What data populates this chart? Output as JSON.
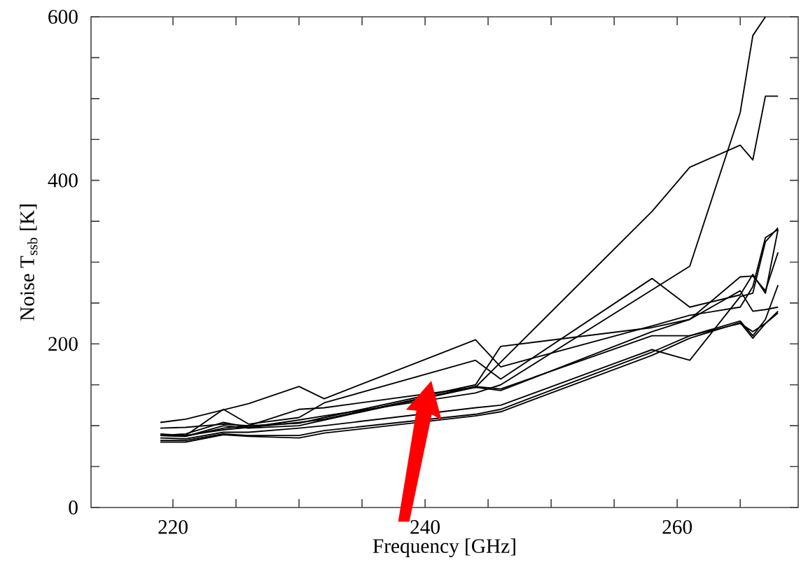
{
  "chart_data": {
    "type": "line",
    "xlabel": "Frequency [GHz]",
    "ylabel": "Noise T$_{ssb}$ [K]",
    "xlim": [
      213.5,
      269.6
    ],
    "ylim": [
      0,
      600
    ],
    "xticks": [
      220,
      {
        "value": 225,
        "label": null
      },
      {
        "value": 230,
        "label": null
      },
      {
        "value": 235,
        "label": null
      },
      240,
      {
        "value": 245,
        "label": null
      },
      {
        "value": 250,
        "label": null
      },
      {
        "value": 255,
        "label": null
      },
      260,
      {
        "value": 265,
        "label": null
      }
    ],
    "yticks": [
      0,
      {
        "value": 50,
        "label": null
      },
      {
        "value": 100,
        "label": null
      },
      {
        "value": 150,
        "label": null
      },
      200,
      {
        "value": 250,
        "label": null
      },
      {
        "value": 300,
        "label": null
      },
      {
        "value": 350,
        "label": null
      },
      400,
      {
        "value": 450,
        "label": null
      },
      {
        "value": 500,
        "label": null
      },
      {
        "value": 550,
        "label": null
      },
      600
    ],
    "x": [
      219,
      221,
      224,
      226,
      230,
      232,
      244,
      246,
      258,
      261,
      265,
      266,
      267,
      268
    ],
    "series": [
      {
        "color": "#000000",
        "x": [
          219,
          221,
          226,
          230,
          232,
          244,
          246,
          258,
          261,
          265,
          266,
          267,
          268
        ],
        "values": [
          104,
          108,
          127,
          148,
          133,
          205,
          172,
          222,
          235,
          245,
          270,
          330,
          340
        ]
      },
      {
        "color": "#000000",
        "x": [
          219,
          221,
          224,
          226,
          230,
          232,
          244,
          258,
          261,
          265,
          266,
          267,
          268
        ],
        "values": [
          97,
          98,
          102,
          100,
          120,
          122,
          147,
          362,
          416,
          443,
          425,
          503,
          503
        ]
      },
      {
        "color": "#000000",
        "x": [
          219,
          221,
          224,
          226,
          230,
          232,
          244,
          246,
          261,
          265,
          266,
          267
        ],
        "values": [
          88,
          90,
          104,
          98,
          107,
          112,
          140,
          150,
          295,
          483,
          577,
          600
        ]
      },
      {
        "color": "#000000",
        "values": [
          90,
          88,
          120,
          102,
          110,
          128,
          180,
          157,
          280,
          245,
          260,
          285,
          262,
          340
        ]
      },
      {
        "color": "#000000",
        "values": [
          88,
          87,
          97,
          100,
          103,
          110,
          150,
          197,
          220,
          230,
          265,
          240,
          242,
          245
        ]
      },
      {
        "color": "#000000",
        "values": [
          88,
          88,
          95,
          98,
          104,
          108,
          148,
          145,
          210,
          210,
          225,
          215,
          225,
          240
        ]
      },
      {
        "color": "#000000",
        "values": [
          88,
          87,
          100,
          97,
          100,
          107,
          147,
          143,
          215,
          230,
          282,
          283,
          265,
          312
        ]
      },
      {
        "color": "#000000",
        "values": [
          85,
          84,
          92,
          92,
          97,
          100,
          122,
          125,
          193,
          180,
          258,
          262,
          325,
          342
        ]
      },
      {
        "color": "#000000",
        "values": [
          82,
          82,
          90,
          88,
          88,
          94,
          114,
          120,
          190,
          210,
          228,
          210,
          230,
          272
        ]
      },
      {
        "color": "#000000",
        "values": [
          80,
          80,
          89,
          87,
          85,
          91,
          112,
          117,
          186,
          207,
          226,
          207,
          225,
          238
        ]
      }
    ]
  }
}
